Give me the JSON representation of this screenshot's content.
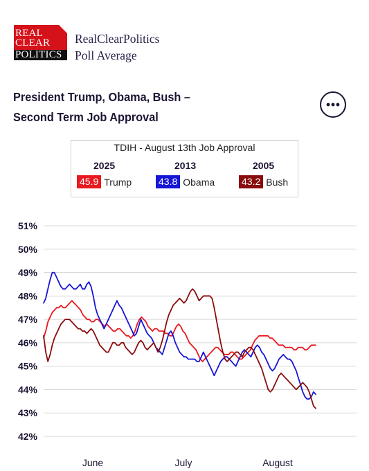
{
  "brand": {
    "logo_lines": [
      "REAL",
      "CLEAR",
      "POLITICS"
    ],
    "name_line1": "RealClearPolitics",
    "name_line2": "Poll Average"
  },
  "header": {
    "title_line1": "President Trump, Obama, Bush –",
    "title_line2": "Second Term Job Approval",
    "more_icon": "ellipsis-icon"
  },
  "legend": {
    "heading": "TDIH - August 13th Job Approval",
    "entries": [
      {
        "year": "2025",
        "value": "45.9",
        "name": "Trump",
        "color": "#e8191f"
      },
      {
        "year": "2013",
        "value": "43.8",
        "name": "Obama",
        "color": "#1616d6"
      },
      {
        "year": "2005",
        "value": "43.2",
        "name": "Bush",
        "color": "#8a0d0d"
      }
    ]
  },
  "chart_data": {
    "type": "line",
    "ylim": [
      42,
      51
    ],
    "y_ticks": [
      "51%",
      "50%",
      "49%",
      "48%",
      "47%",
      "46%",
      "45%",
      "44%",
      "43%",
      "42%"
    ],
    "x_tick_labels": [
      "June",
      "July",
      "August"
    ],
    "grid": true,
    "series": [
      {
        "name": "Trump",
        "color": "#e8191f",
        "values": [
          46.2,
          46.5,
          46.9,
          47.1,
          47.3,
          47.4,
          47.5,
          47.5,
          47.6,
          47.5,
          47.5,
          47.6,
          47.7,
          47.8,
          47.7,
          47.6,
          47.5,
          47.4,
          47.2,
          47.1,
          47.0,
          47.0,
          46.9,
          46.9,
          47.0,
          47.0,
          46.9,
          46.8,
          46.7,
          46.8,
          46.7,
          46.6,
          46.5,
          46.5,
          46.6,
          46.6,
          46.5,
          46.4,
          46.3,
          46.3,
          46.2,
          46.3,
          46.5,
          46.8,
          47.0,
          47.1,
          47.0,
          46.9,
          46.7,
          46.6,
          46.5,
          46.6,
          46.6,
          46.5,
          46.5,
          46.5,
          46.4,
          46.4,
          46.3,
          46.3,
          46.5,
          46.7,
          46.8,
          46.7,
          46.5,
          46.4,
          46.2,
          46.0,
          45.9,
          45.8,
          45.7,
          45.5,
          45.3,
          45.2,
          45.3,
          45.4,
          45.5,
          45.6,
          45.7,
          45.8,
          45.8,
          45.7,
          45.6,
          45.5,
          45.5,
          45.5,
          45.6,
          45.6,
          45.5,
          45.4,
          45.3,
          45.3,
          45.4,
          45.5,
          45.6,
          45.7,
          45.9,
          46.1,
          46.2,
          46.3,
          46.3,
          46.3,
          46.3,
          46.3,
          46.2,
          46.2,
          46.1,
          46.0,
          45.9,
          45.9,
          45.9,
          45.8,
          45.8,
          45.8,
          45.8,
          45.7,
          45.7,
          45.8,
          45.8,
          45.8,
          45.7,
          45.7,
          45.8,
          45.9,
          45.9,
          45.9
        ]
      },
      {
        "name": "Obama",
        "color": "#1616d6",
        "values": [
          47.7,
          47.9,
          48.3,
          48.7,
          49.0,
          49.0,
          48.8,
          48.6,
          48.4,
          48.3,
          48.3,
          48.4,
          48.5,
          48.4,
          48.3,
          48.3,
          48.4,
          48.5,
          48.3,
          48.3,
          48.5,
          48.6,
          48.4,
          48.0,
          47.5,
          47.2,
          47.0,
          46.8,
          46.6,
          46.8,
          47.0,
          47.2,
          47.4,
          47.6,
          47.8,
          47.6,
          47.5,
          47.3,
          47.1,
          46.9,
          46.7,
          46.5,
          46.3,
          46.4,
          46.7,
          47.0,
          46.8,
          46.6,
          46.4,
          46.3,
          46.2,
          46.0,
          45.8,
          45.7,
          45.6,
          45.5,
          45.8,
          46.1,
          46.4,
          46.5,
          46.3,
          46.0,
          45.8,
          45.6,
          45.5,
          45.4,
          45.4,
          45.3,
          45.3,
          45.3,
          45.3,
          45.2,
          45.2,
          45.4,
          45.6,
          45.4,
          45.2,
          45.0,
          44.8,
          44.6,
          44.8,
          45.0,
          45.2,
          45.3,
          45.4,
          45.4,
          45.3,
          45.2,
          45.1,
          45.0,
          45.2,
          45.4,
          45.6,
          45.7,
          45.6,
          45.5,
          45.4,
          45.6,
          45.8,
          45.9,
          45.8,
          45.6,
          45.5,
          45.3,
          45.1,
          44.9,
          44.8,
          44.9,
          45.1,
          45.3,
          45.4,
          45.5,
          45.4,
          45.3,
          45.3,
          45.2,
          45.0,
          44.8,
          44.5,
          44.2,
          43.9,
          43.7,
          43.6,
          43.6,
          43.7,
          43.9,
          43.8
        ]
      },
      {
        "name": "Bush",
        "color": "#8a0d0d",
        "values": [
          46.3,
          45.6,
          45.2,
          45.5,
          45.9,
          46.2,
          46.4,
          46.6,
          46.8,
          46.9,
          47.0,
          47.0,
          47.0,
          46.9,
          46.8,
          46.7,
          46.6,
          46.6,
          46.5,
          46.5,
          46.4,
          46.5,
          46.6,
          46.5,
          46.3,
          46.1,
          45.9,
          45.8,
          45.7,
          45.6,
          45.6,
          45.8,
          46.0,
          46.0,
          45.9,
          45.9,
          46.0,
          46.0,
          45.8,
          45.7,
          45.6,
          45.5,
          45.6,
          45.8,
          46.0,
          46.1,
          46.0,
          45.8,
          45.7,
          45.8,
          45.9,
          46.0,
          45.8,
          45.6,
          45.8,
          46.1,
          46.5,
          46.9,
          47.2,
          47.4,
          47.6,
          47.7,
          47.8,
          47.9,
          47.8,
          47.7,
          47.8,
          48.0,
          48.2,
          48.3,
          48.2,
          48.0,
          47.8,
          47.9,
          48.0,
          48.0,
          48.0,
          48.0,
          47.9,
          47.5,
          47.0,
          46.5,
          46.0,
          45.6,
          45.3,
          45.2,
          45.3,
          45.4,
          45.5,
          45.6,
          45.6,
          45.5,
          45.4,
          45.6,
          45.7,
          45.8,
          45.8,
          45.7,
          45.5,
          45.3,
          45.1,
          44.9,
          44.6,
          44.3,
          44.0,
          43.9,
          44.0,
          44.2,
          44.4,
          44.6,
          44.7,
          44.6,
          44.5,
          44.4,
          44.3,
          44.2,
          44.1,
          44.0,
          44.1,
          44.2,
          44.3,
          44.2,
          44.1,
          43.9,
          43.6,
          43.3,
          43.2
        ]
      }
    ]
  }
}
